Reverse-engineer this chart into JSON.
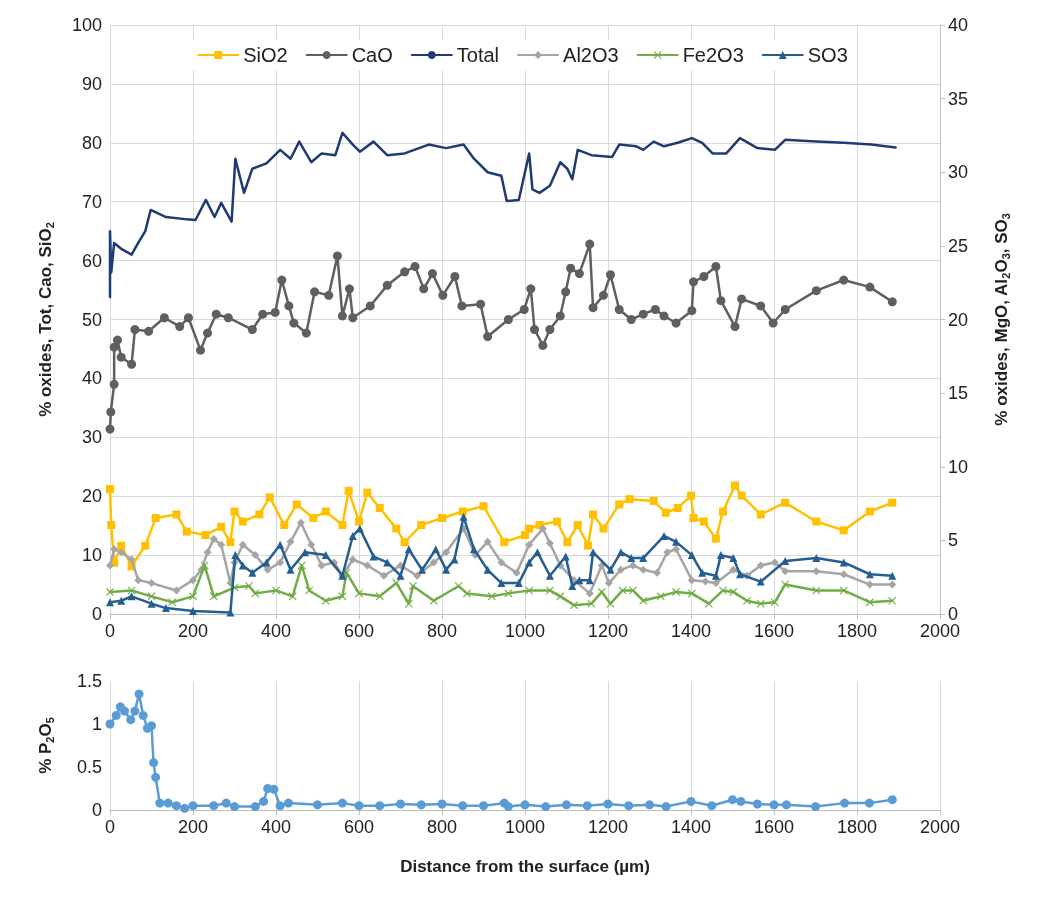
{
  "chart_data": [
    {
      "type": "line",
      "ylabel": "% oxides, Tot, Cao, SiO$_{2}$",
      "y2label": "% oxides, MgO, Al$_{2}$O$_{3}$, SO$_{3}$",
      "xlim": [
        0,
        2000
      ],
      "xticks": [
        0,
        200,
        400,
        600,
        800,
        1000,
        1200,
        1400,
        1600,
        1800,
        2000
      ],
      "ylim": [
        0,
        100
      ],
      "yticks": [
        0,
        10,
        20,
        30,
        40,
        50,
        60,
        70,
        80,
        90,
        100
      ],
      "y2lim": [
        0,
        40
      ],
      "y2ticks": [
        0,
        5,
        10,
        15,
        20,
        25,
        30,
        35,
        40
      ],
      "grid": true,
      "legend": "top",
      "line_style": "solid",
      "series": [
        {
          "name": "SiO2",
          "color": "#ffc000",
          "marker": "square",
          "x": [
            0,
            3,
            10,
            27,
            52,
            85,
            110,
            160,
            185,
            230,
            268,
            290,
            300,
            320,
            360,
            385,
            420,
            450,
            490,
            520,
            560,
            575,
            600,
            620,
            650,
            690,
            710,
            750,
            800,
            850,
            900,
            950,
            1000,
            1010,
            1035,
            1077,
            1102,
            1127,
            1152,
            1164,
            1189,
            1227,
            1252,
            1310,
            1339,
            1368,
            1400,
            1406,
            1431,
            1460,
            1477,
            1506,
            1522,
            1568,
            1627,
            1702,
            1768,
            1831,
            1885
          ],
          "values": [
            21.2,
            15.1,
            8.7,
            11.6,
            8.1,
            11.6,
            16.3,
            16.9,
            14,
            13.4,
            14.8,
            12.2,
            17.4,
            15.7,
            16.9,
            19.8,
            15.1,
            18.6,
            16.3,
            17.4,
            15.1,
            20.9,
            15.7,
            20.6,
            18,
            14.5,
            12.2,
            15.1,
            16.3,
            17.4,
            18.3,
            12.2,
            13.4,
            14.5,
            15.1,
            15.7,
            12.2,
            15.1,
            11.6,
            16.9,
            14.5,
            18.6,
            19.5,
            19.2,
            17.2,
            18,
            20.1,
            16.3,
            15.7,
            12.8,
            17.4,
            21.8,
            20.1,
            16.9,
            18.9,
            15.7,
            14.2,
            17.4,
            18.9
          ]
        },
        {
          "name": "CaO",
          "color": "#5f5f5f",
          "marker": "circle",
          "x": [
            0,
            2,
            10,
            10,
            18,
            27,
            52,
            60,
            93,
            131,
            168,
            189,
            218,
            235,
            256,
            285,
            343,
            368,
            398,
            414,
            431,
            443,
            473,
            493,
            527,
            548,
            560,
            577,
            585,
            627,
            668,
            710,
            735,
            756,
            777,
            802,
            831,
            848,
            893,
            910,
            960,
            998,
            1014,
            1023,
            1043,
            1060,
            1085,
            1098,
            1110,
            1131,
            1156,
            1164,
            1189,
            1206,
            1227,
            1256,
            1285,
            1314,
            1335,
            1364,
            1402,
            1406,
            1431,
            1460,
            1472,
            1506,
            1522,
            1568,
            1598,
            1627,
            1702,
            1768,
            1831,
            1885
          ],
          "values": [
            31.4,
            34.3,
            39,
            45.3,
            46.5,
            43.6,
            42.4,
            48.3,
            48,
            50.3,
            48.8,
            50.3,
            44.8,
            47.7,
            50.9,
            50.3,
            48.3,
            50.9,
            51.2,
            56.7,
            52.3,
            49.4,
            47.7,
            54.7,
            54.1,
            60.8,
            50.6,
            55.2,
            50.3,
            52.3,
            55.8,
            58.1,
            59,
            55.2,
            57.8,
            54.1,
            57.3,
            52.3,
            52.6,
            47.1,
            50,
            51.7,
            55.2,
            48.3,
            45.6,
            48.3,
            50.6,
            54.7,
            58.7,
            57.8,
            62.8,
            52,
            54.1,
            57.6,
            51.7,
            50,
            50.9,
            51.7,
            50.6,
            49.4,
            51.5,
            56.4,
            57.3,
            59,
            53.2,
            48.8,
            53.5,
            52.3,
            49.4,
            51.7,
            54.9,
            56.7,
            55.5,
            53
          ]
        },
        {
          "name": "Total",
          "color": "#1f3b73",
          "marker": "none",
          "x": [
            0,
            0,
            3,
            10,
            27,
            52,
            68,
            85,
            98,
            135,
            185,
            206,
            231,
            252,
            268,
            293,
            302,
            323,
            343,
            377,
            410,
            435,
            456,
            485,
            510,
            543,
            560,
            585,
            602,
            635,
            668,
            710,
            768,
            810,
            852,
            877,
            910,
            943,
            956,
            985,
            1010,
            1018,
            1035,
            1060,
            1085,
            1102,
            1114,
            1127,
            1160,
            1210,
            1227,
            1268,
            1285,
            1310,
            1335,
            1368,
            1402,
            1427,
            1452,
            1485,
            1518,
            1560,
            1602,
            1627,
            1702,
            1768,
            1835,
            1893
          ],
          "values": [
            53.8,
            65,
            58,
            63,
            62,
            61,
            63,
            65,
            68.6,
            67.4,
            67,
            66.9,
            70.3,
            67.4,
            69.8,
            66.6,
            77.3,
            71.5,
            75.6,
            76.5,
            78.8,
            77.3,
            80.2,
            76.7,
            78.2,
            77.9,
            81.7,
            79.7,
            78.5,
            80.2,
            77.9,
            78.2,
            79.7,
            79.1,
            79.7,
            77.3,
            75,
            74.4,
            70.1,
            70.3,
            78.2,
            72.1,
            71.5,
            72.7,
            76.7,
            75.6,
            73.8,
            78.8,
            77.9,
            77.6,
            79.7,
            79.4,
            78.8,
            80.2,
            79.4,
            80,
            80.8,
            80,
            78.2,
            78.2,
            80.8,
            79.1,
            78.8,
            80.5,
            80.2,
            80,
            79.7,
            79.2
          ]
        },
        {
          "name": "Al2O3",
          "color": "#a5a5a5",
          "marker": "diamond",
          "axis": "y2",
          "x": [
            0,
            10,
            27,
            52,
            68,
            100,
            160,
            200,
            220,
            235,
            250,
            268,
            290,
            300,
            320,
            350,
            380,
            410,
            435,
            460,
            485,
            510,
            540,
            560,
            585,
            620,
            660,
            700,
            740,
            780,
            810,
            852,
            880,
            910,
            943,
            980,
            1010,
            1043,
            1060,
            1085,
            1118,
            1156,
            1185,
            1202,
            1231,
            1260,
            1285,
            1318,
            1343,
            1364,
            1402,
            1435,
            1460,
            1502,
            1535,
            1568,
            1602,
            1627,
            1702,
            1768,
            1831,
            1885
          ],
          "values": [
            3.3,
            4.4,
            4.2,
            3.7,
            2.3,
            2.1,
            1.6,
            2.3,
            3,
            4.2,
            5.1,
            4.7,
            2.1,
            3.5,
            4.7,
            4,
            3,
            3.5,
            4.9,
            6.2,
            4.7,
            3.3,
            3.5,
            2.6,
            3.7,
            3.3,
            2.6,
            3.3,
            2.6,
            3.5,
            4.2,
            5.8,
            4,
            4.9,
            3.5,
            2.8,
            4.7,
            5.8,
            4.8,
            3.3,
            2.3,
            1.4,
            3.3,
            2.1,
            3,
            3.3,
            3,
            2.8,
            4.2,
            4.4,
            2.3,
            2.2,
            2.1,
            3,
            2.6,
            3.3,
            3.5,
            2.9,
            2.9,
            2.7,
            2,
            2
          ]
        },
        {
          "name": "Fe2O3",
          "color": "#70ad47",
          "marker": "cross",
          "axis": "y2",
          "x": [
            0,
            52,
            100,
            150,
            200,
            228,
            250,
            300,
            335,
            350,
            400,
            440,
            462,
            480,
            520,
            560,
            570,
            600,
            650,
            690,
            720,
            730,
            780,
            840,
            860,
            920,
            960,
            1010,
            1060,
            1085,
            1118,
            1160,
            1185,
            1206,
            1235,
            1260,
            1285,
            1327,
            1364,
            1402,
            1443,
            1477,
            1502,
            1535,
            1568,
            1602,
            1627,
            1702,
            1768,
            1831,
            1885
          ],
          "values": [
            1.5,
            1.6,
            1.2,
            0.8,
            1.2,
            3.3,
            1.2,
            1.8,
            1.9,
            1.4,
            1.6,
            1.2,
            3.3,
            1.6,
            0.9,
            1.2,
            2.8,
            1.4,
            1.2,
            2.1,
            0.7,
            1.9,
            0.9,
            1.9,
            1.4,
            1.2,
            1.4,
            1.6,
            1.6,
            1.2,
            0.6,
            0.7,
            1.5,
            0.7,
            1.6,
            1.6,
            0.9,
            1.2,
            1.5,
            1.4,
            0.7,
            1.6,
            1.5,
            0.9,
            0.7,
            0.8,
            2,
            1.6,
            1.6,
            0.8,
            0.9
          ]
        },
        {
          "name": "SO3",
          "color": "#255e91",
          "marker": "triangle",
          "axis": "y2",
          "x": [
            0,
            27,
            52,
            100,
            135,
            200,
            290,
            302,
            320,
            343,
            377,
            410,
            435,
            470,
            520,
            560,
            585,
            602,
            635,
            668,
            700,
            720,
            752,
            785,
            810,
            830,
            852,
            877,
            910,
            943,
            985,
            1010,
            1030,
            1060,
            1098,
            1114,
            1131,
            1156,
            1164,
            1206,
            1231,
            1256,
            1285,
            1335,
            1364,
            1402,
            1427,
            1460,
            1472,
            1502,
            1518,
            1568,
            1627,
            1702,
            1768,
            1831,
            1885
          ],
          "values": [
            0.8,
            0.9,
            1.2,
            0.7,
            0.4,
            0.2,
            0.1,
            4,
            3.3,
            2.8,
            3.5,
            4.7,
            3,
            4.2,
            4,
            2.6,
            5.3,
            5.8,
            3.9,
            3.5,
            2.6,
            4.4,
            3,
            4.4,
            3,
            3.7,
            6.6,
            4.4,
            3,
            2.1,
            2.1,
            3.5,
            4.2,
            2.6,
            3.9,
            1.9,
            2.3,
            2.3,
            4.2,
            3,
            4.2,
            3.8,
            3.8,
            5.3,
            4.9,
            4,
            2.8,
            2.6,
            4,
            3.8,
            2.7,
            2.2,
            3.6,
            3.8,
            3.5,
            2.7,
            2.6
          ]
        }
      ]
    },
    {
      "type": "line",
      "ylabel": "% P$_{2}$O$_{5}$",
      "xlabel": "Distance from the surface (µm)",
      "xlim": [
        0,
        2000
      ],
      "xticks": [
        0,
        200,
        400,
        600,
        800,
        1000,
        1200,
        1400,
        1600,
        1800,
        2000
      ],
      "ylim": [
        0,
        1.5
      ],
      "yticks": [
        0,
        0.5,
        1,
        1.5
      ],
      "grid": "x",
      "marker": "circle",
      "line_style": "solid",
      "color": "#5b9bd5",
      "x": [
        0,
        15,
        25,
        35,
        50,
        60,
        70,
        80,
        90,
        100,
        105,
        110,
        120,
        140,
        160,
        180,
        200,
        250,
        280,
        300,
        350,
        370,
        380,
        395,
        410,
        430,
        500,
        560,
        600,
        650,
        700,
        750,
        800,
        850,
        900,
        950,
        960,
        1000,
        1050,
        1100,
        1150,
        1200,
        1250,
        1300,
        1340,
        1400,
        1450,
        1500,
        1520,
        1560,
        1600,
        1630,
        1700,
        1770,
        1830,
        1885
      ],
      "values": [
        1,
        1.1,
        1.2,
        1.15,
        1.05,
        1.15,
        1.35,
        1.1,
        0.95,
        0.98,
        0.55,
        0.38,
        0.08,
        0.08,
        0.05,
        0.02,
        0.05,
        0.05,
        0.08,
        0.04,
        0.04,
        0.1,
        0.25,
        0.24,
        0.05,
        0.08,
        0.06,
        0.08,
        0.05,
        0.05,
        0.07,
        0.06,
        0.07,
        0.05,
        0.05,
        0.08,
        0.04,
        0.06,
        0.04,
        0.06,
        0.05,
        0.07,
        0.05,
        0.06,
        0.04,
        0.1,
        0.05,
        0.12,
        0.1,
        0.07,
        0.06,
        0.06,
        0.04,
        0.08,
        0.08,
        0.12
      ]
    }
  ]
}
